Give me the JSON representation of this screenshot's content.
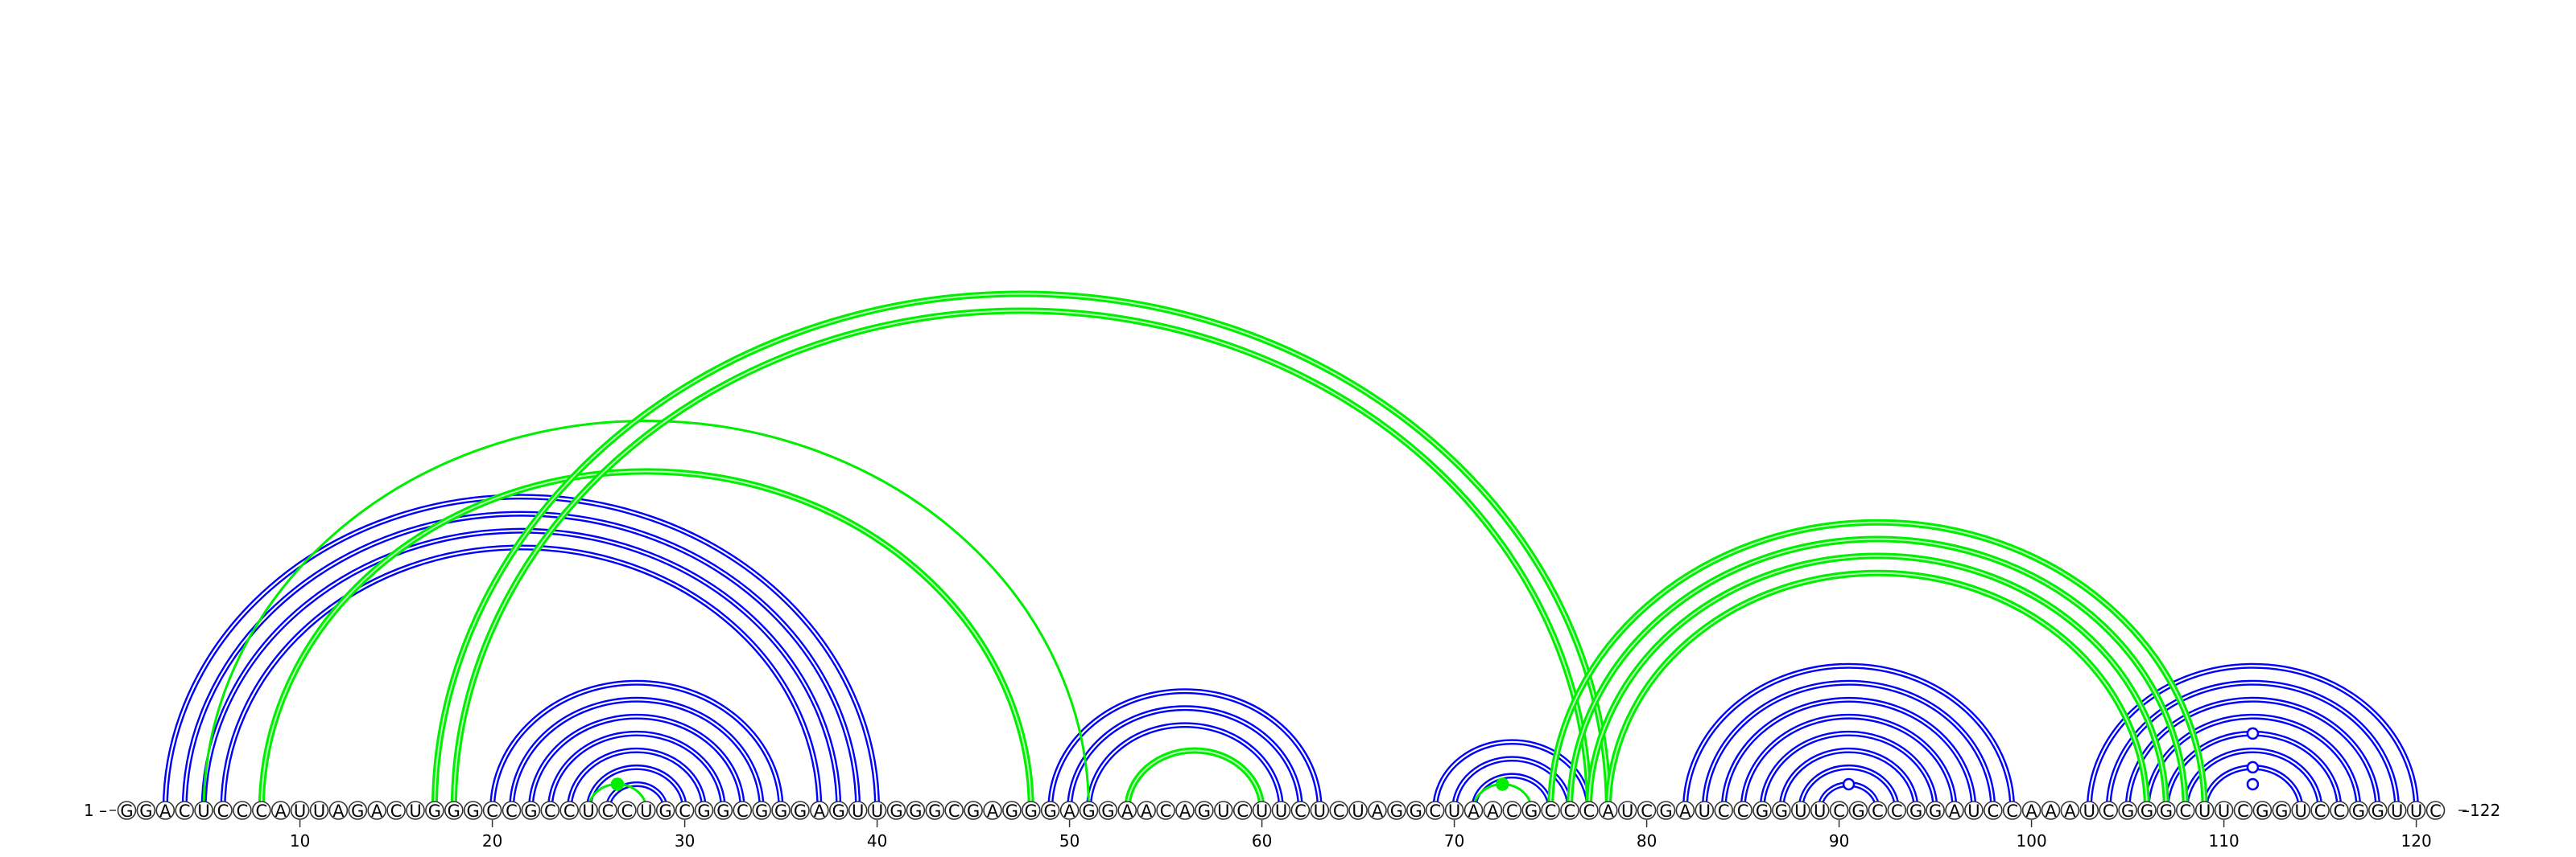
{
  "sequence": "GGACUCCCAUUAGACUGGGCCGCCUCCUGCGGCGGGAGUUGGGCGAGGGAGGAACAGUCUUCUCUAGGCUAACGCCCAUCGAUCCGGUUCGCCGGAUCCAAAUCGGGCUUCGGUCCGGUUC",
  "start_label": "1 –",
  "end_label": "–122",
  "tick_labels": [
    "10",
    "20",
    "30",
    "40",
    "50",
    "60",
    "70",
    "80",
    "90",
    "100",
    "110",
    "120"
  ],
  "colors": {
    "structure_a": "#0000ff",
    "structure_b": "#00ee00"
  },
  "helices_blue": [
    {
      "i": 3,
      "j": 40,
      "n": 4
    },
    {
      "i": 20,
      "j": 35,
      "n": 7
    },
    {
      "i": 49,
      "j": 63,
      "n": 3
    },
    {
      "i": 69,
      "j": 77,
      "n": 3
    },
    {
      "i": 82,
      "j": 99,
      "n": 8
    },
    {
      "i": 103,
      "j": 120,
      "n": 4
    },
    {
      "i": 107,
      "j": 116,
      "n": 3
    }
  ],
  "helices_green": [
    {
      "i": 5,
      "j": 51,
      "n": 1,
      "thick": false
    },
    {
      "i": 8,
      "j": 48,
      "n": 1,
      "thick": true
    },
    {
      "i": 17,
      "j": 78,
      "n": 2,
      "thick": true
    },
    {
      "i": 25,
      "j": 28,
      "n": 1,
      "thick": false
    },
    {
      "i": 53,
      "j": 60,
      "n": 1,
      "thick": true
    },
    {
      "i": 71,
      "j": 74,
      "n": 1,
      "thick": false
    },
    {
      "i": 75,
      "j": 109,
      "n": 4,
      "thick": true
    }
  ],
  "markers": [
    {
      "pos": 26.5,
      "level": 1,
      "color": "structure_b",
      "filled": true
    },
    {
      "pos": 72.5,
      "level": 1,
      "color": "structure_b",
      "filled": true
    },
    {
      "pos": 90.5,
      "level": 1,
      "color": "structure_a",
      "filled": false
    },
    {
      "pos": 111.5,
      "level": 1,
      "color": "structure_a",
      "filled": false
    },
    {
      "pos": 111.5,
      "level": 2,
      "color": "structure_a",
      "filled": false
    },
    {
      "pos": 111.5,
      "level": 4,
      "color": "structure_a",
      "filled": false
    }
  ]
}
